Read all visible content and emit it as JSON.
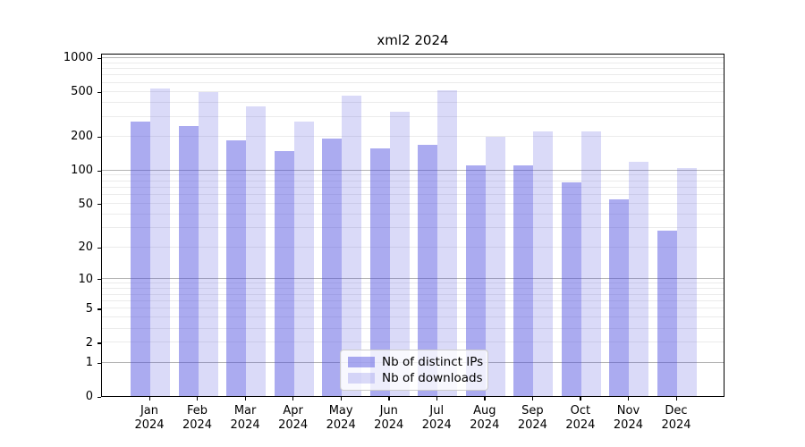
{
  "title": "xml2 2024",
  "chart_data": {
    "type": "bar",
    "title": "xml2 2024",
    "categories": [
      "Jan",
      "Feb",
      "Mar",
      "Apr",
      "May",
      "Jun",
      "Jul",
      "Aug",
      "Sep",
      "Oct",
      "Nov",
      "Dec"
    ],
    "year_label": "2024",
    "series": [
      {
        "name": "Nb of distinct IPs",
        "color": "rgba(68,68,221,0.45)",
        "values": [
          270,
          248,
          185,
          147,
          191,
          155,
          168,
          110,
          110,
          78,
          54,
          28
        ]
      },
      {
        "name": "Nb of downloads",
        "color": "rgba(68,68,221,0.2)",
        "values": [
          530,
          490,
          367,
          270,
          460,
          330,
          510,
          197,
          221,
          221,
          118,
          104
        ]
      }
    ],
    "yscale": "log1p",
    "ylim": [
      0,
      1104
    ],
    "y_ticks": [
      1000,
      500,
      200,
      100,
      50,
      20,
      10,
      5,
      2,
      1,
      0
    ],
    "y_major_grid": [
      1,
      10,
      100,
      1000
    ],
    "y_minor_grid": [
      2,
      3,
      4,
      5,
      6,
      7,
      8,
      9,
      20,
      30,
      40,
      50,
      60,
      70,
      80,
      90,
      200,
      300,
      400,
      500,
      600,
      700,
      800,
      900
    ],
    "grid": true,
    "legend_position": "lower center",
    "legend_labels": [
      "Nb of distinct IPs",
      "Nb of downloads"
    ]
  },
  "colors": {
    "bar_distinct_ips": "rgba(68,68,221,0.45)",
    "bar_downloads": "rgba(68,68,221,0.2)",
    "grid_minor": "#ebebeb",
    "grid_major": "#b4b4b4",
    "axis": "#000000",
    "background": "#ffffff"
  }
}
